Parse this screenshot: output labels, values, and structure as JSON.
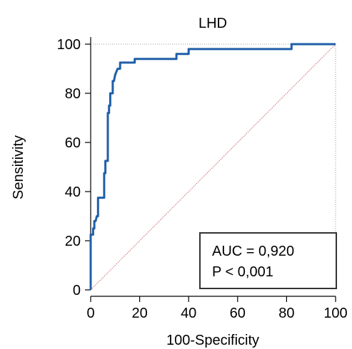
{
  "chart_data": {
    "type": "line",
    "title": "LHD",
    "xlabel": "100-Specificity",
    "ylabel": "Sensitivity",
    "xlim": [
      0,
      100
    ],
    "ylim": [
      0,
      100
    ],
    "xticks": [
      "0",
      "20",
      "40",
      "60",
      "80",
      "100"
    ],
    "yticks": [
      "0",
      "20",
      "40",
      "60",
      "80",
      "100"
    ],
    "grid": "dotted, partial (top and right of plot area)",
    "series": [
      {
        "color": "#1f5fa8",
        "x": [
          0,
          0,
          1,
          1,
          1.5,
          1.5,
          2,
          2.5,
          3,
          3,
          4,
          4,
          5,
          5.5,
          5.5,
          6,
          6,
          7,
          7,
          7.5,
          7.5,
          8,
          8,
          9,
          9,
          9.5,
          10,
          11,
          12,
          12,
          14,
          15,
          18,
          18,
          20,
          25,
          30,
          35,
          35,
          38,
          38,
          40,
          40,
          45,
          50,
          60,
          70,
          80,
          82,
          82,
          85,
          90,
          100
        ],
        "y": [
          0,
          22.5,
          22.5,
          25,
          25,
          28,
          28,
          30,
          30,
          37.5,
          37.5,
          37.5,
          37.5,
          37.5,
          47.5,
          47.5,
          52.5,
          52.5,
          72,
          72,
          75,
          75,
          80,
          80,
          85,
          85,
          87.5,
          90,
          90,
          92.5,
          92.5,
          92.5,
          92.5,
          94,
          94,
          94,
          94,
          94,
          96,
          96,
          96,
          96,
          98,
          98,
          98,
          98,
          98,
          98,
          98,
          100,
          100,
          100,
          100
        ]
      },
      {
        "color": "#c85a5a",
        "x": [
          0,
          100
        ],
        "y": [
          0,
          100
        ]
      }
    ],
    "annotation": {
      "line1": "AUC = 0,920",
      "line2": "P < 0,001"
    }
  },
  "colors": {
    "roc": "#1f5fa8",
    "reference": "#c85a5a",
    "axis": "#000000"
  }
}
